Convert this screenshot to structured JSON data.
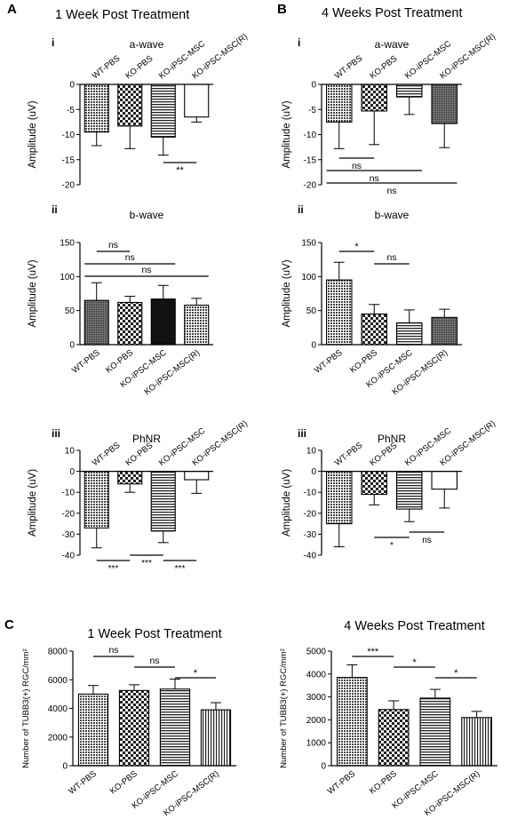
{
  "panels": {
    "A": {
      "letter": "A",
      "title": "1 Week Post Treatment"
    },
    "B": {
      "letter": "B",
      "title": "4 Weeks Post Treatment"
    },
    "C": {
      "letter": "C"
    }
  },
  "chart_data": [
    {
      "id": "A-i",
      "type": "bar",
      "roman": "i",
      "title": "a-wave",
      "ylabel": "Amplitude (uV)",
      "ylim": [
        -20,
        0
      ],
      "yticks": [
        0,
        -5,
        -10,
        -15,
        -20
      ],
      "categories": [
        "WT-PBS",
        "KO-PBS",
        "KO-iPSC-MSC",
        "KO-iPSC-MSC(R)"
      ],
      "values": [
        -9.5,
        -8.3,
        -10.5,
        -6.5
      ],
      "errors": [
        2.7,
        4.5,
        3.6,
        1.0
      ],
      "patterns": [
        "grid",
        "check",
        "hlines",
        "plain"
      ],
      "significance": [
        {
          "from": 2,
          "to": 3,
          "label": "**"
        }
      ]
    },
    {
      "id": "B-i",
      "type": "bar",
      "roman": "i",
      "title": "a-wave",
      "ylabel": "Amplitude (uV)",
      "ylim": [
        -20,
        0
      ],
      "yticks": [
        0,
        -5,
        -10,
        -15,
        -20
      ],
      "categories": [
        "WT-PBS",
        "KO-PBS",
        "KO-iPSC-MSC",
        "KO-iPSC-MSC(R)"
      ],
      "values": [
        -7.5,
        -5.3,
        -2.5,
        -7.8
      ],
      "errors": [
        5.3,
        6.7,
        3.5,
        4.8
      ],
      "patterns": [
        "grid",
        "check",
        "hlines",
        "dense"
      ],
      "significance": [
        {
          "from": 0,
          "to": 1,
          "label": "ns"
        },
        {
          "from": 0,
          "to": 2,
          "label": "ns"
        },
        {
          "from": 0,
          "to": 3,
          "label": "ns"
        }
      ]
    },
    {
      "id": "A-ii",
      "type": "bar",
      "roman": "ii",
      "title": "b-wave",
      "ylabel": "Amplitude (uV)",
      "ylim": [
        0,
        150
      ],
      "yticks": [
        0,
        50,
        100,
        150
      ],
      "categories": [
        "WT-PBS",
        "KO-PBS",
        "KO-iPSC-MSC",
        "KO-iPSC-MSC(R)"
      ],
      "values": [
        65,
        62,
        67,
        58
      ],
      "errors": [
        26,
        9,
        20,
        10
      ],
      "patterns": [
        "dense",
        "check",
        "black",
        "grid"
      ],
      "significance": [
        {
          "from": 0,
          "to": 1,
          "label": "ns"
        },
        {
          "from": 0,
          "to": 2,
          "label": "ns"
        },
        {
          "from": 0,
          "to": 3,
          "label": "ns"
        }
      ]
    },
    {
      "id": "B-ii",
      "type": "bar",
      "roman": "ii",
      "title": "b-wave",
      "ylabel": "Amplitude (uV)",
      "ylim": [
        0,
        150
      ],
      "yticks": [
        0,
        50,
        100,
        150
      ],
      "categories": [
        "WT-PBS",
        "KO-PBS",
        "KO-iPSC-MSC",
        "KO-iPSC-MSC(R)"
      ],
      "values": [
        95,
        45,
        32,
        40
      ],
      "errors": [
        26,
        14,
        19,
        12
      ],
      "patterns": [
        "grid",
        "check",
        "hlines",
        "dense"
      ],
      "significance": [
        {
          "from": 0,
          "to": 1,
          "label": "*"
        },
        {
          "from": 1,
          "to": 2,
          "label": "ns"
        }
      ]
    },
    {
      "id": "A-iii",
      "type": "bar",
      "roman": "iii",
      "title": "PhNR",
      "ylabel": "Amplitude (uV)",
      "ylim": [
        -40,
        10
      ],
      "yticks": [
        10,
        0,
        -10,
        -20,
        -30,
        -40
      ],
      "categories": [
        "WT-PBS",
        "KO-PBS",
        "KO-iPSC-MSC",
        "KO-iPSC-MSC(R)"
      ],
      "values": [
        -27,
        -6,
        -28.5,
        -4
      ],
      "errors": [
        9.5,
        4,
        5.5,
        6.5
      ],
      "patterns": [
        "grid",
        "check",
        "hlines",
        "plain"
      ],
      "significance": [
        {
          "from": 0,
          "to": 1,
          "label": "***",
          "below": true
        },
        {
          "from": 1,
          "to": 2,
          "label": "***",
          "below": true
        },
        {
          "from": 2,
          "to": 3,
          "label": "***",
          "below": true
        }
      ]
    },
    {
      "id": "B-iii",
      "type": "bar",
      "roman": "iii",
      "title": "PhNR",
      "ylabel": "Amplitude (uV)",
      "ylim": [
        -40,
        10
      ],
      "yticks": [
        10,
        0,
        -10,
        -20,
        -30,
        -40
      ],
      "categories": [
        "WT-PBS",
        "KO-PBS",
        "KO-iPSC-MSC",
        "KO-iPSC-MSC(R)"
      ],
      "values": [
        -25,
        -11,
        -18,
        -8.5
      ],
      "errors": [
        11,
        5,
        6,
        9
      ],
      "patterns": [
        "grid",
        "check",
        "hlines",
        "plain"
      ],
      "significance": [
        {
          "from": 1,
          "to": 2,
          "label": "*",
          "below": true
        },
        {
          "from": 2,
          "to": 3,
          "label": "ns",
          "below": true
        }
      ]
    },
    {
      "id": "C-1",
      "type": "bar",
      "roman": "",
      "title": "1 Week Post Treatment",
      "ylabel": "Number of TUBB3(+) RGC/mm²",
      "ylim": [
        0,
        8000
      ],
      "yticks": [
        0,
        2000,
        4000,
        6000,
        8000
      ],
      "categories": [
        "WT-PBS",
        "KO-PBS",
        "KO-iPSC-MSC",
        "KO-iPSC-MSC(R)"
      ],
      "values": [
        5000,
        5250,
        5350,
        3900
      ],
      "errors": [
        600,
        400,
        700,
        500
      ],
      "patterns": [
        "grid",
        "check",
        "hlines",
        "vlines"
      ],
      "significance": [
        {
          "from": 0,
          "to": 1,
          "label": "ns"
        },
        {
          "from": 1,
          "to": 2,
          "label": "ns"
        },
        {
          "from": 2,
          "to": 3,
          "label": "*"
        }
      ]
    },
    {
      "id": "C-2",
      "type": "bar",
      "roman": "",
      "title": "4 Weeks Post Treatment",
      "ylabel": "Number of TUBB3(+) RGC/mm²",
      "ylim": [
        0,
        5000
      ],
      "yticks": [
        0,
        1000,
        2000,
        3000,
        4000,
        5000
      ],
      "categories": [
        "WT-PBS",
        "KO-PBS",
        "KO-iPSC-MSC",
        "KO-iPSC-MSC(R)"
      ],
      "values": [
        3850,
        2450,
        2950,
        2100
      ],
      "errors": [
        550,
        380,
        380,
        270
      ],
      "patterns": [
        "grid",
        "check",
        "hlines",
        "vlines"
      ],
      "significance": [
        {
          "from": 0,
          "to": 1,
          "label": "***"
        },
        {
          "from": 1,
          "to": 2,
          "label": "*"
        },
        {
          "from": 2,
          "to": 3,
          "label": "*"
        }
      ]
    }
  ]
}
